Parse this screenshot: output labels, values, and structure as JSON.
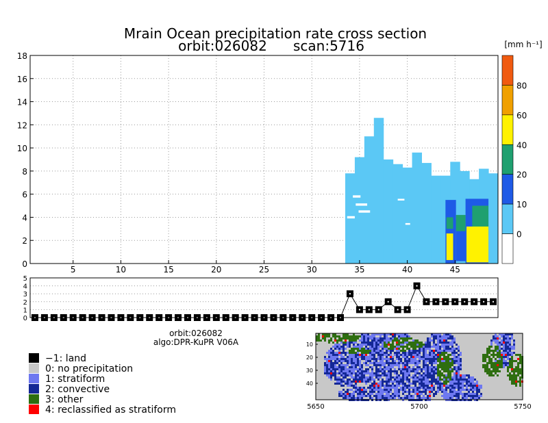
{
  "chart_data": {
    "type": "heatmap",
    "title": "Mrain Ocean precipitation rate cross section",
    "orbit_label": "orbit:026082",
    "scan_label": "scan:5716",
    "unit_label": "[mm h⁻¹]",
    "main": {
      "xlim": [
        1,
        49
      ],
      "ylim": [
        0,
        18
      ],
      "x_ticks": [
        5,
        10,
        15,
        20,
        25,
        30,
        35,
        40,
        45
      ],
      "y_ticks": [
        0,
        2,
        4,
        6,
        8,
        10,
        12,
        14,
        16,
        18
      ],
      "grid": true,
      "colorbar_ticks": [
        0,
        10,
        20,
        40,
        60,
        80
      ],
      "colorbar_colors": [
        "#ffffff",
        "#5bc8f5",
        "#1e5ae6",
        "#1fa070",
        "#fff200",
        "#f0a000",
        "#f05a10"
      ],
      "light_columns": [
        {
          "x": 34,
          "top": 7.8
        },
        {
          "x": 35,
          "top": 9.2
        },
        {
          "x": 36,
          "top": 11.0
        },
        {
          "x": 37,
          "top": 12.6
        },
        {
          "x": 38,
          "top": 9.0
        },
        {
          "x": 39,
          "top": 8.6
        },
        {
          "x": 40,
          "top": 8.3
        },
        {
          "x": 41,
          "top": 9.6
        },
        {
          "x": 42,
          "top": 8.7
        },
        {
          "x": 43,
          "top": 7.6
        },
        {
          "x": 44,
          "top": 7.6
        },
        {
          "x": 45,
          "top": 8.8
        },
        {
          "x": 46,
          "top": 8.0
        },
        {
          "x": 47,
          "top": 7.3
        },
        {
          "x": 48,
          "top": 8.2
        },
        {
          "x": 49,
          "top": 7.8
        }
      ],
      "light_bottom": 0.0,
      "blue_patches": [
        {
          "x0": 44.5,
          "x1": 45.6,
          "y0": 0.0,
          "y1": 5.5
        },
        {
          "x0": 45.6,
          "x1": 46.6,
          "y0": 0.2,
          "y1": 3.8
        },
        {
          "x0": 46.6,
          "x1": 49.0,
          "y0": 0.0,
          "y1": 5.6
        }
      ],
      "green_patches": [
        {
          "x0": 47.3,
          "x1": 49.0,
          "y0": 2.5,
          "y1": 5.0
        },
        {
          "x0": 45.6,
          "x1": 46.6,
          "y0": 2.8,
          "y1": 4.2
        },
        {
          "x0": 44.6,
          "x1": 45.3,
          "y0": 3.0,
          "y1": 4.0
        }
      ],
      "yellow_patches": [
        {
          "x0": 44.6,
          "x1": 45.3,
          "y0": 0.3,
          "y1": 2.6
        },
        {
          "x0": 46.7,
          "x1": 49.0,
          "y0": 0.1,
          "y1": 3.2
        }
      ]
    },
    "type_panel": {
      "ylim": [
        0,
        5
      ],
      "y_ticks": [
        0,
        1,
        2,
        3,
        4,
        5
      ],
      "values": [
        0,
        0,
        0,
        0,
        0,
        0,
        0,
        0,
        0,
        0,
        0,
        0,
        0,
        0,
        0,
        0,
        0,
        0,
        0,
        0,
        0,
        0,
        0,
        0,
        0,
        0,
        0,
        0,
        0,
        0,
        0,
        0,
        0,
        3,
        1,
        1,
        1,
        2,
        1,
        1,
        4,
        2,
        2,
        2,
        2,
        2,
        2,
        2,
        2
      ]
    },
    "map_inset": {
      "x_ticks": [
        5650,
        5700,
        5750
      ],
      "y_ticks": [
        10,
        20,
        30,
        40
      ]
    }
  },
  "info": {
    "orbit": "orbit:026082",
    "algo": "algo:DPR-KuPR V06A"
  },
  "legend": [
    {
      "label": "−1: land",
      "color": "#000000"
    },
    {
      "label": "0: no precipitation",
      "color": "#c8c8c8"
    },
    {
      "label": "1: stratiform",
      "color": "#6e78f0"
    },
    {
      "label": "2: convective",
      "color": "#142896"
    },
    {
      "label": "3: other",
      "color": "#2e6e10"
    },
    {
      "label": "4: reclassified as stratiform",
      "color": "#ff0000"
    }
  ]
}
